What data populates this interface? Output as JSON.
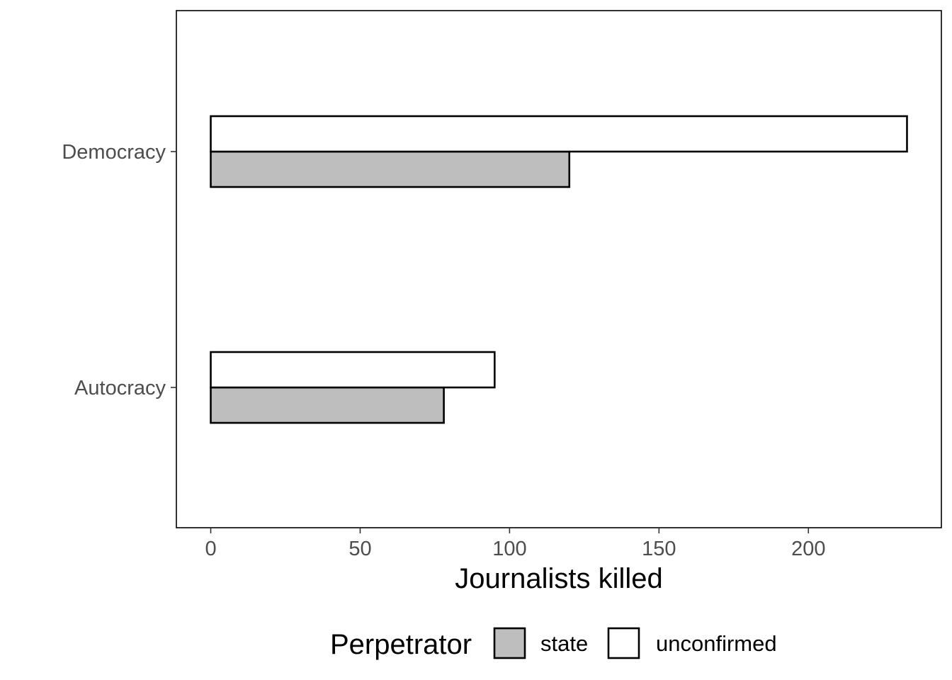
{
  "chart_data": {
    "type": "bar",
    "orientation": "horizontal",
    "categories": [
      "Democracy",
      "Autocracy"
    ],
    "series": [
      {
        "name": "state",
        "values": [
          120,
          78
        ],
        "color": "#bebebe"
      },
      {
        "name": "unconfirmed",
        "values": [
          233,
          95
        ],
        "color": "#ffffff"
      }
    ],
    "xlabel": "Journalists killed",
    "ylabel": "",
    "xlim": [
      -11.5,
      244.5
    ],
    "xticks": [
      0,
      50,
      100,
      150,
      200
    ],
    "grid": false,
    "legend": {
      "title": "Perpetrator",
      "position": "bottom"
    }
  }
}
